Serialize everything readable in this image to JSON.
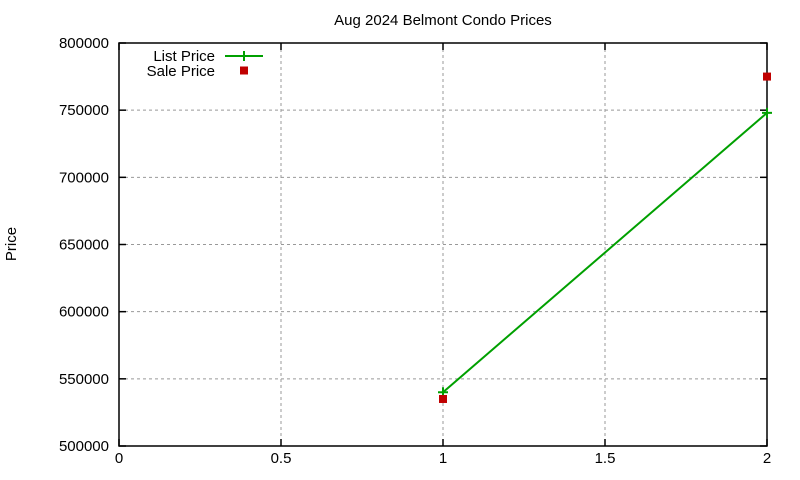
{
  "window": {
    "background": "#ffffff"
  },
  "chart_data": {
    "type": "line",
    "title": "Aug 2024 Belmont Condo Prices",
    "xlabel": "",
    "ylabel": "Price",
    "xlim": [
      0,
      2
    ],
    "ylim": [
      500000,
      800000
    ],
    "xticks": [
      0,
      0.5,
      1,
      1.5,
      2
    ],
    "xtick_labels": [
      "0",
      "0.5",
      "1",
      "1.5",
      "2"
    ],
    "yticks": [
      500000,
      550000,
      600000,
      650000,
      700000,
      750000,
      800000
    ],
    "ytick_labels": [
      "500000",
      "550000",
      "600000",
      "650000",
      "700000",
      "750000",
      "800000"
    ],
    "grid": true,
    "grid_style": "dashed",
    "legend": {
      "position": "top-left-inside",
      "entries": [
        "List Price",
        "Sale Price"
      ]
    },
    "series": [
      {
        "name": "List Price",
        "style": "linespoints",
        "marker": "plus",
        "color": "#00a000",
        "x": [
          1,
          2
        ],
        "y": [
          540000,
          748000
        ]
      },
      {
        "name": "Sale Price",
        "style": "points",
        "marker": "square",
        "color": "#c00000",
        "x": [
          1,
          2
        ],
        "y": [
          535000,
          775000
        ]
      }
    ],
    "colors": {
      "axis": "#000000",
      "grid": "#999999",
      "text": "#000000",
      "background": "#ffffff"
    }
  }
}
